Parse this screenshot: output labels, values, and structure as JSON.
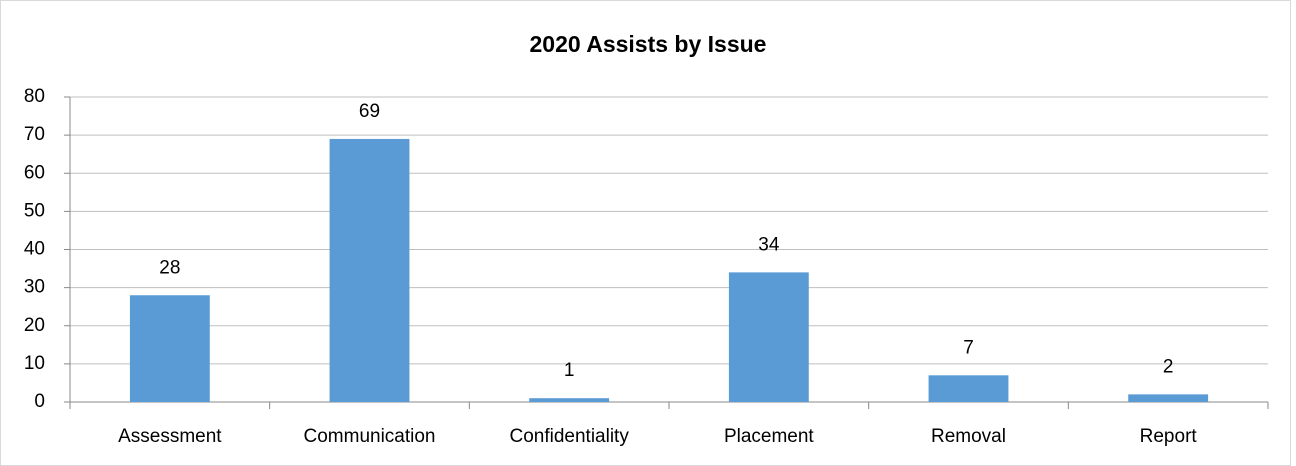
{
  "chart_data": {
    "type": "bar",
    "title": "2020 Assists by Issue",
    "categories": [
      "Assessment",
      "Communication",
      "Confidentiality",
      "Placement",
      "Removal",
      "Report"
    ],
    "values": [
      28,
      69,
      1,
      34,
      7,
      2
    ],
    "color": "#5b9bd5",
    "ylim": [
      0,
      80
    ],
    "yticks": [
      0,
      10,
      20,
      30,
      40,
      50,
      60,
      70,
      80
    ],
    "grid": true
  }
}
